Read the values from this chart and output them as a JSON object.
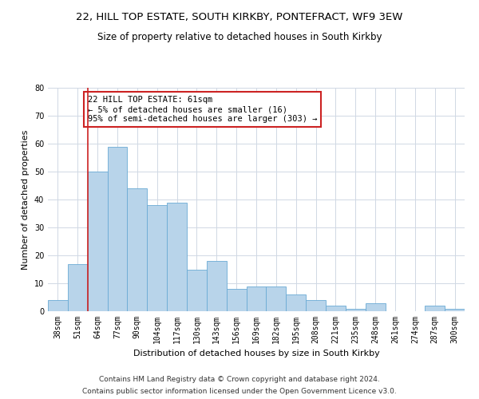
{
  "title_line1": "22, HILL TOP ESTATE, SOUTH KIRKBY, PONTEFRACT, WF9 3EW",
  "title_line2": "Size of property relative to detached houses in South Kirkby",
  "xlabel": "Distribution of detached houses by size in South Kirkby",
  "ylabel": "Number of detached properties",
  "categories": [
    "38sqm",
    "51sqm",
    "64sqm",
    "77sqm",
    "90sqm",
    "104sqm",
    "117sqm",
    "130sqm",
    "143sqm",
    "156sqm",
    "169sqm",
    "182sqm",
    "195sqm",
    "208sqm",
    "221sqm",
    "235sqm",
    "248sqm",
    "261sqm",
    "274sqm",
    "287sqm",
    "300sqm"
  ],
  "values": [
    4,
    17,
    50,
    59,
    44,
    38,
    39,
    15,
    18,
    8,
    9,
    9,
    6,
    4,
    2,
    1,
    3,
    0,
    0,
    2,
    1
  ],
  "bar_color": "#b8d4ea",
  "bar_edge_color": "#6aaad4",
  "grid_color": "#d0d8e4",
  "vline_x_index": 1.5,
  "vline_color": "#cc2222",
  "annotation_text": "22 HILL TOP ESTATE: 61sqm\n← 5% of detached houses are smaller (16)\n95% of semi-detached houses are larger (303) →",
  "annotation_box_color": "white",
  "annotation_box_edge": "#cc2222",
  "ylim": [
    0,
    80
  ],
  "yticks": [
    0,
    10,
    20,
    30,
    40,
    50,
    60,
    70,
    80
  ],
  "footer1": "Contains HM Land Registry data © Crown copyright and database right 2024.",
  "footer2": "Contains public sector information licensed under the Open Government Licence v3.0.",
  "title_fontsize": 9.5,
  "subtitle_fontsize": 8.5,
  "axis_label_fontsize": 8,
  "tick_fontsize": 7,
  "annotation_fontsize": 7.5,
  "footer_fontsize": 6.5
}
